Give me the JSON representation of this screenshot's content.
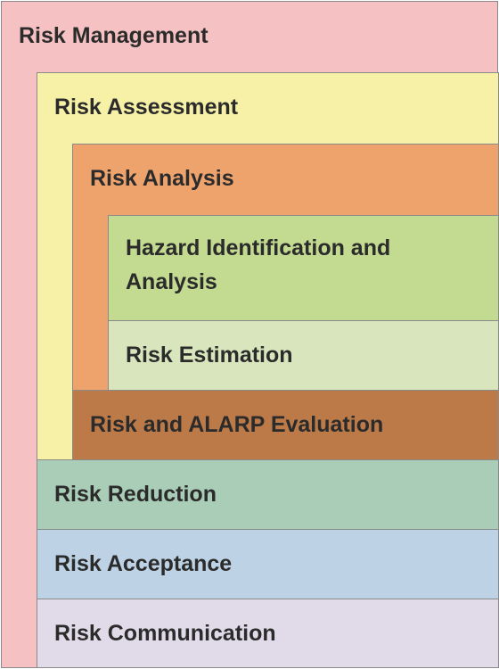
{
  "diagram": {
    "risk_management": {
      "label": "Risk Management",
      "color": "#f5c1c2"
    },
    "risk_assessment": {
      "label": "Risk Assessment",
      "color": "#f6f1a6"
    },
    "risk_analysis": {
      "label": "Risk Analysis",
      "color": "#eea36d"
    },
    "hazard_identification": {
      "label": "Hazard Identification and Analysis",
      "color": "#c2db90"
    },
    "risk_estimation": {
      "label": "Risk Estimation",
      "color": "#d9e6bd"
    },
    "risk_alarp_evaluation": {
      "label": "Risk and ALARP Evaluation",
      "color": "#bc7a48"
    },
    "risk_reduction": {
      "label": "Risk Reduction",
      "color": "#aacdb7"
    },
    "risk_acceptance": {
      "label": "Risk Acceptance",
      "color": "#bdd3e5"
    },
    "risk_communication": {
      "label": "Risk Communication",
      "color": "#e1dbe9"
    }
  }
}
